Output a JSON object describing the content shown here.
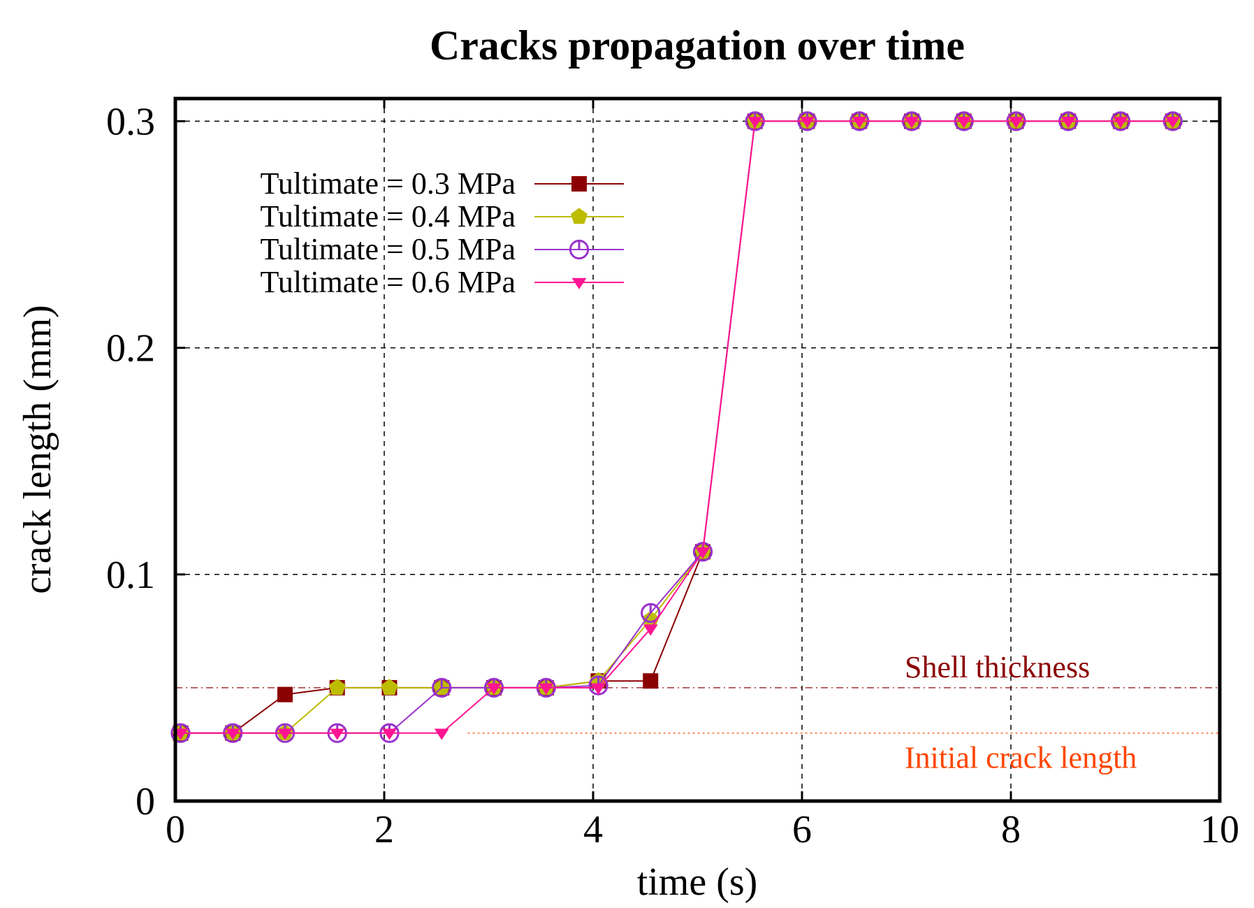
{
  "chart_data": {
    "type": "line",
    "title": "Cracks propagation over time",
    "xlabel": "time (s)",
    "ylabel": "crack length (mm)",
    "xlim": [
      0,
      10
    ],
    "ylim": [
      0,
      0.31
    ],
    "xticks": [
      0,
      2,
      4,
      6,
      8,
      10
    ],
    "xtick_labels": [
      "0",
      "2",
      "4",
      "6",
      "8",
      "10"
    ],
    "yticks": [
      0,
      0.1,
      0.2,
      0.3
    ],
    "ytick_labels": [
      "0",
      "0.1",
      "0.2",
      "0.3"
    ],
    "grid": true,
    "legend_position": "top-left",
    "series": [
      {
        "name": "Tultimate = 0.3 MPa",
        "color": "#8b0000",
        "marker": "square",
        "x": [
          0.05,
          0.55,
          1.05,
          1.55,
          2.05,
          2.55,
          3.05,
          3.55,
          4.05,
          4.55,
          5.05,
          5.55,
          6.05,
          6.55,
          7.05,
          7.55,
          8.05,
          8.55,
          9.05,
          9.55
        ],
        "y": [
          0.03,
          0.03,
          0.047,
          0.05,
          0.05,
          0.05,
          0.05,
          0.05,
          0.053,
          0.053,
          0.11,
          0.3,
          0.3,
          0.3,
          0.3,
          0.3,
          0.3,
          0.3,
          0.3,
          0.3
        ]
      },
      {
        "name": "Tultimate = 0.4 MPa",
        "color": "#bcbc00",
        "marker": "pentagon",
        "x": [
          0.05,
          0.55,
          1.05,
          1.55,
          2.05,
          2.55,
          3.05,
          3.55,
          4.05,
          4.55,
          5.05,
          5.55,
          6.05,
          6.55,
          7.05,
          7.55,
          8.05,
          8.55,
          9.05,
          9.55
        ],
        "y": [
          0.03,
          0.03,
          0.03,
          0.05,
          0.05,
          0.05,
          0.05,
          0.05,
          0.053,
          0.08,
          0.11,
          0.3,
          0.3,
          0.3,
          0.3,
          0.3,
          0.3,
          0.3,
          0.3,
          0.3
        ]
      },
      {
        "name": "Tultimate = 0.5 MPa",
        "color": "#9932cc",
        "marker": "circle-open",
        "x": [
          0.05,
          0.55,
          1.05,
          1.55,
          2.05,
          2.55,
          3.05,
          3.55,
          4.05,
          4.55,
          5.05,
          5.55,
          6.05,
          6.55,
          7.05,
          7.55,
          8.05,
          8.55,
          9.05,
          9.55
        ],
        "y": [
          0.03,
          0.03,
          0.03,
          0.03,
          0.03,
          0.05,
          0.05,
          0.05,
          0.051,
          0.083,
          0.11,
          0.3,
          0.3,
          0.3,
          0.3,
          0.3,
          0.3,
          0.3,
          0.3,
          0.3
        ]
      },
      {
        "name": "Tultimate = 0.6 MPa",
        "color": "#ff1493",
        "marker": "triangle-down",
        "x": [
          0.05,
          0.55,
          1.05,
          1.55,
          2.05,
          2.55,
          3.05,
          3.55,
          4.05,
          4.55,
          5.05,
          5.55,
          6.05,
          6.55,
          7.05,
          7.55,
          8.05,
          8.55,
          9.05,
          9.55
        ],
        "y": [
          0.03,
          0.03,
          0.03,
          0.03,
          0.03,
          0.03,
          0.05,
          0.05,
          0.05,
          0.076,
          0.11,
          0.3,
          0.3,
          0.3,
          0.3,
          0.3,
          0.3,
          0.3,
          0.3,
          0.3
        ]
      }
    ],
    "reference_lines": [
      {
        "label": "Shell thickness",
        "y": 0.05,
        "x_start": 0,
        "color": "#8b0000",
        "style": "dash-dot"
      },
      {
        "label": "Initial crack length",
        "y": 0.03,
        "x_start": 2.8,
        "color": "#ff4500",
        "style": "dotted"
      }
    ]
  }
}
